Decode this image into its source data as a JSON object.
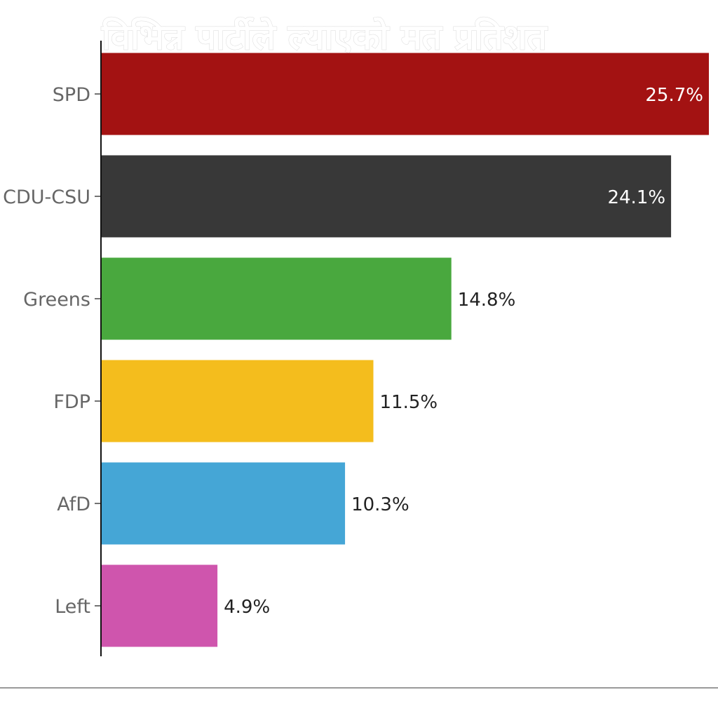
{
  "chart_data": {
    "type": "bar",
    "orientation": "horizontal",
    "title": "विभिन्न पार्टीले ल्याएको मत प्रतिशत",
    "categories": [
      "SPD",
      "CDU-CSU",
      "Greens",
      "FDP",
      "AfD",
      "Left"
    ],
    "values": [
      25.7,
      24.1,
      14.8,
      11.5,
      10.3,
      4.9
    ],
    "value_labels": [
      "25.7%",
      "24.1%",
      "14.8%",
      "11.5%",
      "10.3%",
      "4.9%"
    ],
    "colors": [
      "#a31212",
      "#383838",
      "#49a83e",
      "#f4bd1d",
      "#45a6d6",
      "#cf55ad"
    ],
    "label_colors_inside": "#ffffff",
    "label_color_outside": "#222222",
    "xlabel": "",
    "ylabel": "",
    "xlim": [
      0,
      25.7
    ],
    "grid": false,
    "legend": "none"
  }
}
